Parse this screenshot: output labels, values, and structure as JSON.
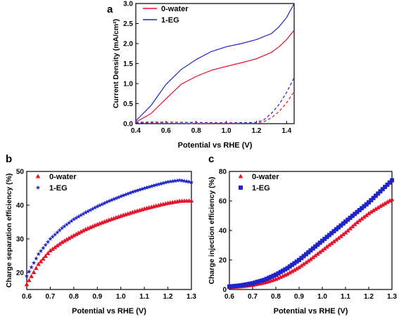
{
  "chart_data": [
    {
      "panel_label": "a",
      "type": "line",
      "xlabel": "Potential vs RHE (V)",
      "ylabel": "Current Density (mA/cm²)",
      "xlim": [
        0.4,
        1.45
      ],
      "ylim": [
        0.0,
        3.0
      ],
      "xticks": [
        "0.4",
        "0.6",
        "0.8",
        "1.0",
        "1.2",
        "1.4"
      ],
      "yticks": [
        "0.0",
        "0.5",
        "1.0",
        "1.5",
        "2.0",
        "2.5",
        "3.0"
      ],
      "legend_position": "top-left",
      "series": [
        {
          "name": "0-water",
          "color": "#e8102a",
          "style": "solid",
          "x": [
            0.4,
            0.5,
            0.6,
            0.7,
            0.8,
            0.9,
            1.0,
            1.1,
            1.2,
            1.3,
            1.35,
            1.4,
            1.45
          ],
          "y": [
            0.04,
            0.25,
            0.62,
            0.98,
            1.18,
            1.33,
            1.43,
            1.52,
            1.62,
            1.78,
            1.92,
            2.1,
            2.33
          ]
        },
        {
          "name": "1-EG",
          "color": "#1e24c8",
          "style": "solid",
          "x": [
            0.4,
            0.5,
            0.6,
            0.7,
            0.8,
            0.9,
            1.0,
            1.1,
            1.2,
            1.3,
            1.35,
            1.4,
            1.45
          ],
          "y": [
            0.07,
            0.45,
            0.98,
            1.35,
            1.6,
            1.8,
            1.92,
            2.0,
            2.1,
            2.25,
            2.42,
            2.65,
            3.0
          ]
        },
        {
          "name": "",
          "color": "#e8102a",
          "style": "dashed",
          "x": [
            0.4,
            0.8,
            1.0,
            1.2,
            1.25,
            1.3,
            1.35,
            1.4,
            1.45
          ],
          "y": [
            0.02,
            0.0,
            0.0,
            0.01,
            0.05,
            0.15,
            0.3,
            0.52,
            0.8
          ]
        },
        {
          "name": "",
          "color": "#1e24c8",
          "style": "dashed",
          "x": [
            0.4,
            0.5,
            0.8,
            1.0,
            1.2,
            1.25,
            1.3,
            1.35,
            1.4,
            1.45
          ],
          "y": [
            0.03,
            0.04,
            0.03,
            0.02,
            0.03,
            0.1,
            0.26,
            0.48,
            0.78,
            1.15
          ]
        }
      ]
    },
    {
      "panel_label": "b",
      "type": "scatter",
      "xlabel": "Potential vs RHE (V)",
      "ylabel": "Charge separation efficiency (%)",
      "xlim": [
        0.6,
        1.3
      ],
      "ylim": [
        15,
        50
      ],
      "xticks": [
        "0.6",
        "0.7",
        "0.8",
        "0.9",
        "1.0",
        "1.1",
        "1.2",
        "1.3"
      ],
      "yticks": [
        "20",
        "30",
        "40",
        "50"
      ],
      "legend_position": "top-left",
      "series": [
        {
          "name": "0-water",
          "color": "#e8102a",
          "marker": "triangle",
          "x": [
            0.6,
            0.65,
            0.7,
            0.75,
            0.8,
            0.85,
            0.9,
            0.95,
            1.0,
            1.05,
            1.1,
            1.15,
            1.2,
            1.25,
            1.3
          ],
          "y": [
            16.5,
            22.5,
            26.5,
            29.0,
            31.0,
            32.8,
            34.3,
            35.6,
            36.8,
            37.9,
            38.9,
            39.8,
            40.6,
            41.2,
            41.3
          ]
        },
        {
          "name": "1-EG",
          "color": "#1e24c8",
          "marker": "star",
          "x": [
            0.6,
            0.65,
            0.7,
            0.75,
            0.8,
            0.85,
            0.9,
            0.95,
            1.0,
            1.05,
            1.1,
            1.15,
            1.2,
            1.25,
            1.3
          ],
          "y": [
            19.0,
            25.5,
            30.0,
            33.2,
            35.8,
            37.8,
            39.6,
            41.2,
            42.6,
            43.9,
            45.0,
            46.0,
            46.9,
            47.4,
            46.8
          ]
        }
      ]
    },
    {
      "panel_label": "c",
      "type": "scatter",
      "xlabel": "Potential vs RHE (V)",
      "ylabel": "Charge injection efficiency (%)",
      "xlim": [
        0.6,
        1.3
      ],
      "ylim": [
        0,
        80
      ],
      "xticks": [
        "0.6",
        "0.7",
        "0.8",
        "0.9",
        "1.0",
        "1.1",
        "1.2",
        "1.3"
      ],
      "yticks": [
        "0",
        "20",
        "40",
        "60",
        "80"
      ],
      "legend_position": "top-left",
      "series": [
        {
          "name": "0-water",
          "color": "#e8102a",
          "marker": "triangle",
          "x": [
            0.6,
            0.65,
            0.7,
            0.75,
            0.8,
            0.85,
            0.9,
            0.95,
            1.0,
            1.05,
            1.1,
            1.15,
            1.2,
            1.25,
            1.3
          ],
          "y": [
            1.5,
            2.0,
            3.0,
            4.6,
            7.0,
            10.5,
            15.0,
            20.5,
            26.5,
            32.5,
            38.5,
            45.5,
            51.5,
            56.5,
            61.0
          ]
        },
        {
          "name": "1-EG",
          "color": "#1e24c8",
          "marker": "square",
          "x": [
            0.6,
            0.65,
            0.7,
            0.75,
            0.8,
            0.85,
            0.9,
            0.95,
            1.0,
            1.05,
            1.1,
            1.15,
            1.2,
            1.25,
            1.3
          ],
          "y": [
            2.0,
            2.8,
            4.2,
            6.5,
            10.0,
            14.5,
            20.0,
            26.5,
            33.0,
            39.5,
            46.0,
            52.5,
            59.0,
            66.5,
            74.0
          ]
        }
      ]
    }
  ]
}
